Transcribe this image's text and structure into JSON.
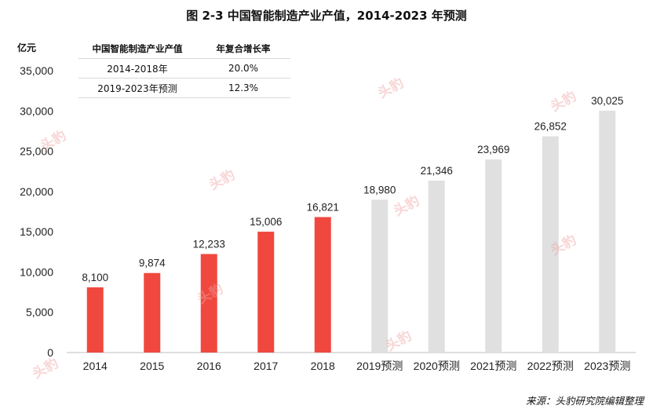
{
  "title": "图 2-3 中国智能制造产业产值，2014-2023 年预测",
  "source": "来源：头豹研究院编辑整理",
  "watermark": "头豹",
  "table": {
    "headers": [
      "中国智能制造产业产值",
      "年复合增长率"
    ],
    "rows": [
      [
        "2014-2018年",
        "20.0%"
      ],
      [
        "2019-2023年预测",
        "12.3%"
      ]
    ]
  },
  "colors": {
    "actual": "#f0483e",
    "forecast": "#e0e0e0"
  },
  "chart_data": {
    "type": "bar",
    "ylabel": "亿元",
    "ylim": [
      0,
      35000
    ],
    "yticks": [
      "0",
      "5,000",
      "10,000",
      "15,000",
      "20,000",
      "25,000",
      "30,000",
      "35,000"
    ],
    "categories": [
      "2014",
      "2015",
      "2016",
      "2017",
      "2018",
      "2019预测",
      "2020预测",
      "2021预测",
      "2022预测",
      "2023预测"
    ],
    "values": [
      8100,
      9874,
      12233,
      15006,
      16821,
      18980,
      21346,
      23969,
      26852,
      30025
    ],
    "labels": [
      "8,100",
      "9,874",
      "12,233",
      "15,006",
      "16,821",
      "18,980",
      "21,346",
      "23,969",
      "26,852",
      "30,025"
    ],
    "forecast_from_index": 5
  }
}
